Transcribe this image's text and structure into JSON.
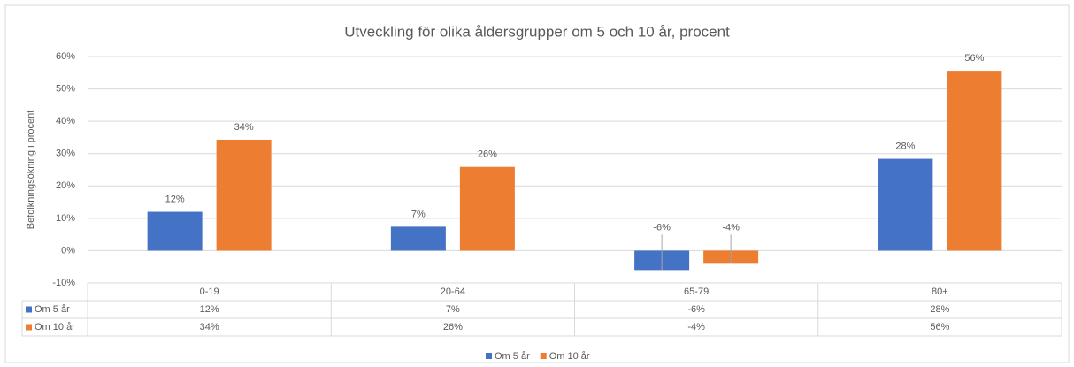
{
  "chart_data": {
    "type": "bar",
    "title": "Utveckling för olika åldersgrupper om 5 och 10 år, procent",
    "y_axis_label": "Befolkningsökning i procent",
    "categories": [
      "0-19",
      "20-64",
      "65-79",
      "80+"
    ],
    "series": [
      {
        "name": "Om 5 år",
        "color": "#4472c4",
        "values": [
          12,
          7.4,
          -6,
          28.4
        ],
        "value_labels": [
          "12%",
          "7%",
          "-6%",
          "28%"
        ]
      },
      {
        "name": "Om 10 år",
        "color": "#ed7d31",
        "values": [
          34.3,
          25.9,
          -3.8,
          55.6
        ],
        "value_labels": [
          "34%",
          "26%",
          "-4%",
          "56%"
        ]
      }
    ],
    "ylim": [
      -10,
      60
    ],
    "yticks": [
      {
        "value": -10,
        "label": "-10%"
      },
      {
        "value": 0,
        "label": "0%"
      },
      {
        "value": 10,
        "label": "10%"
      },
      {
        "value": 20,
        "label": "20%"
      },
      {
        "value": 30,
        "label": "30%"
      },
      {
        "value": 40,
        "label": "40%"
      },
      {
        "value": 50,
        "label": "50%"
      },
      {
        "value": 60,
        "label": "60%"
      }
    ],
    "grid": true,
    "legend": "bottom",
    "data_table": true
  }
}
